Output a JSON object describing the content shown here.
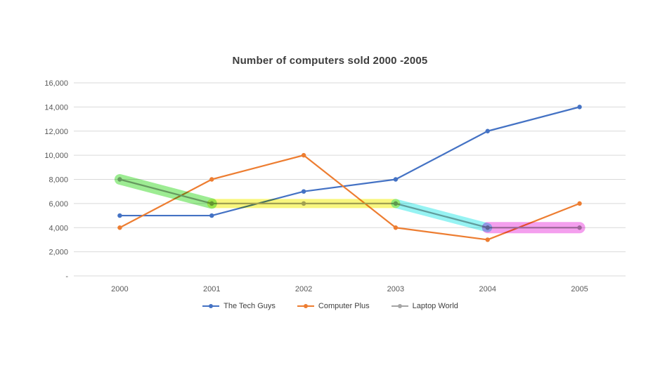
{
  "page": {
    "background": "#ffffff"
  },
  "chart_data": {
    "type": "line",
    "title": "Number of computers sold 2000 -2005",
    "categories": [
      "2000",
      "2001",
      "2002",
      "2003",
      "2004",
      "2005"
    ],
    "series": [
      {
        "name": "The Tech Guys",
        "color": "#4472C4",
        "values": [
          5000,
          5000,
          7000,
          8000,
          12000,
          14000
        ]
      },
      {
        "name": "Computer Plus",
        "color": "#ED7D31",
        "values": [
          4000,
          8000,
          10000,
          4000,
          3000,
          6000
        ]
      },
      {
        "name": "Laptop World",
        "color": "#A5A5A5",
        "values": [
          8000,
          6000,
          6000,
          6000,
          4000,
          4000
        ]
      }
    ],
    "ylim": [
      0,
      16000
    ],
    "ytick_step": 2000,
    "ytick_labels": [
      "-",
      "2,000",
      "4,000",
      "6,000",
      "8,000",
      "10,000",
      "12,000",
      "14,000",
      "16,000"
    ],
    "grid": true,
    "gridline_color": "#D9D9D9",
    "legend_position": "bottom",
    "annotations": [
      {
        "name": "green-highlighter",
        "color": "#5BE04A",
        "opacity": 0.6,
        "stroke_width": 15,
        "from_x": "2000",
        "from_y": 8000,
        "to_x": "2001",
        "to_y": 6000
      },
      {
        "name": "yellow-highlighter",
        "color": "#F5F236",
        "opacity": 0.65,
        "stroke_width": 13,
        "from_x": "2001",
        "from_y": 6000,
        "to_x": "2003",
        "to_y": 6000
      },
      {
        "name": "cyan-highlighter",
        "color": "#3FE9E9",
        "opacity": 0.55,
        "stroke_width": 13,
        "from_x": "2003",
        "from_y": 6000,
        "to_x": "2004",
        "to_y": 4000
      },
      {
        "name": "magenta-highlighter",
        "color": "#EC5FE3",
        "opacity": 0.6,
        "stroke_width": 16,
        "from_x": "2004",
        "from_y": 4000,
        "to_x": "2005",
        "to_y": 4000
      }
    ]
  }
}
